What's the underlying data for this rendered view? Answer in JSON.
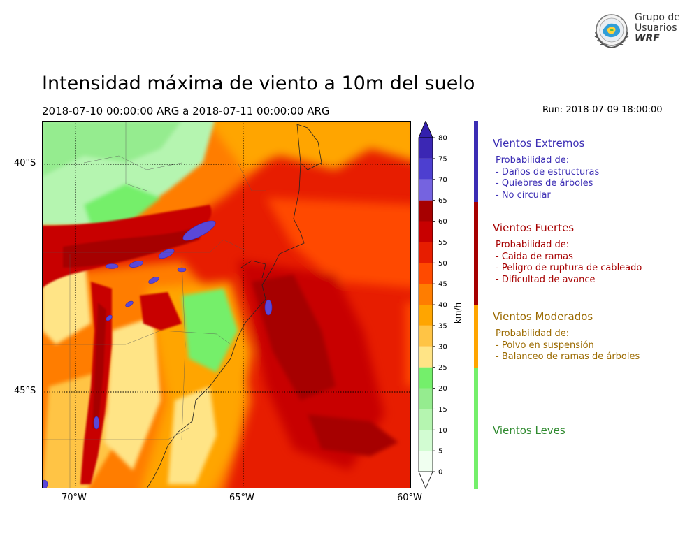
{
  "header": {
    "title": "Intensidad máxima de viento a 10m del suelo",
    "date_range": "2018-07-10 00:00:00 ARG  a  2018-07-11 00:00:00 ARG",
    "run": "Run: 2018-07-09 18:00:00"
  },
  "logo": {
    "line1": "Grupo de",
    "line2": "Usuarios",
    "line3": "WRF"
  },
  "map": {
    "lat_labels": [
      "40°S",
      "45°S"
    ],
    "lon_labels": [
      "70°W",
      "65°W",
      "60°W"
    ]
  },
  "colorbar": {
    "label": "km/h",
    "levels": [
      0,
      5,
      10,
      15,
      20,
      25,
      30,
      35,
      40,
      45,
      50,
      55,
      60,
      65,
      70,
      75,
      80
    ],
    "colors": [
      "#f0fff0",
      "#d2fcd2",
      "#b5f5b0",
      "#95ec8f",
      "#74ef6b",
      "#ffe486",
      "#ffc445",
      "#ffa500",
      "#ff7d00",
      "#ff4a00",
      "#e71d00",
      "#c80000",
      "#a60000",
      "#7563e0",
      "#4d3fd0",
      "#3b27b4"
    ],
    "under_color": "#ffffff",
    "over_color": "#3320ad"
  },
  "legend": [
    {
      "title": "Vientos Extremos",
      "color": "#3b2db4",
      "bar_color": "#3b2db4",
      "lines": [
        "Probabilidad de:",
        "- Daños de estructuras",
        "- Quiebres de árboles",
        "- No circular"
      ]
    },
    {
      "title": "Vientos Fuertes",
      "color": "#a60000",
      "bar_color": "#a60000",
      "lines": [
        "Probabilidad de:",
        "- Caida de ramas",
        "- Peligro de ruptura de cableado",
        "- Dificultad de avance"
      ]
    },
    {
      "title": "Vientos Moderados",
      "color": "#9b6a00",
      "bar_color": "#ffa500",
      "lines": [
        "Probabilidad de:",
        "- Polvo en suspensión",
        "- Balanceo de ramas de árboles"
      ]
    },
    {
      "title": "Vientos Leves",
      "color": "#2f8a2f",
      "bar_color": "#74ef6b",
      "lines": []
    }
  ]
}
